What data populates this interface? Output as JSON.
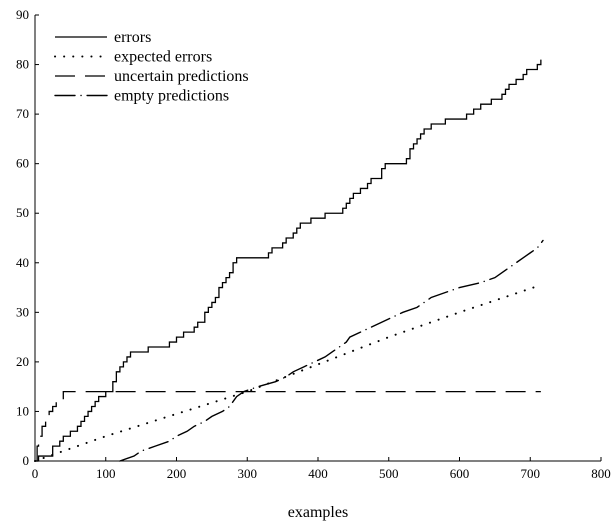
{
  "chart_data": {
    "type": "line",
    "title": "",
    "xlabel": "examples",
    "ylabel": "",
    "xlim": [
      0,
      800
    ],
    "ylim": [
      0,
      90
    ],
    "x_ticks": [
      "0",
      "100",
      "200",
      "300",
      "400",
      "500",
      "600",
      "700",
      "800"
    ],
    "y_ticks": [
      "0",
      "10",
      "20",
      "30",
      "40",
      "50",
      "60",
      "70",
      "80",
      "90"
    ],
    "grid": false,
    "legend_position": "top-left",
    "series": [
      {
        "name": "errors",
        "style": "solid",
        "points": [
          [
            0,
            0
          ],
          [
            5,
            1
          ],
          [
            10,
            1
          ],
          [
            20,
            1
          ],
          [
            25,
            3
          ],
          [
            30,
            3
          ],
          [
            35,
            4
          ],
          [
            40,
            5
          ],
          [
            45,
            5
          ],
          [
            50,
            6
          ],
          [
            60,
            7
          ],
          [
            65,
            8
          ],
          [
            70,
            9
          ],
          [
            75,
            10
          ],
          [
            80,
            11
          ],
          [
            85,
            12
          ],
          [
            90,
            13
          ],
          [
            95,
            13
          ],
          [
            100,
            14
          ],
          [
            110,
            16
          ],
          [
            115,
            18
          ],
          [
            120,
            19
          ],
          [
            125,
            20
          ],
          [
            130,
            21
          ],
          [
            135,
            22
          ],
          [
            140,
            22
          ],
          [
            150,
            22
          ],
          [
            160,
            23
          ],
          [
            170,
            23
          ],
          [
            180,
            23
          ],
          [
            190,
            24
          ],
          [
            200,
            25
          ],
          [
            210,
            26
          ],
          [
            220,
            26
          ],
          [
            225,
            27
          ],
          [
            230,
            28
          ],
          [
            240,
            30
          ],
          [
            245,
            31
          ],
          [
            250,
            32
          ],
          [
            255,
            33
          ],
          [
            260,
            35
          ],
          [
            265,
            36
          ],
          [
            270,
            37
          ],
          [
            275,
            38
          ],
          [
            280,
            40
          ],
          [
            285,
            41
          ],
          [
            300,
            41
          ],
          [
            320,
            41
          ],
          [
            330,
            42
          ],
          [
            335,
            43
          ],
          [
            340,
            43
          ],
          [
            350,
            44
          ],
          [
            355,
            45
          ],
          [
            360,
            45
          ],
          [
            365,
            46
          ],
          [
            370,
            47
          ],
          [
            375,
            48
          ],
          [
            385,
            48
          ],
          [
            390,
            49
          ],
          [
            400,
            49
          ],
          [
            410,
            50
          ],
          [
            430,
            50
          ],
          [
            435,
            51
          ],
          [
            440,
            52
          ],
          [
            445,
            53
          ],
          [
            450,
            54
          ],
          [
            460,
            55
          ],
          [
            470,
            56
          ],
          [
            475,
            57
          ],
          [
            480,
            57
          ],
          [
            490,
            59
          ],
          [
            495,
            60
          ],
          [
            520,
            60
          ],
          [
            525,
            61
          ],
          [
            530,
            63
          ],
          [
            535,
            64
          ],
          [
            540,
            65
          ],
          [
            545,
            66
          ],
          [
            550,
            67
          ],
          [
            560,
            68
          ],
          [
            570,
            68
          ],
          [
            580,
            69
          ],
          [
            600,
            69
          ],
          [
            610,
            70
          ],
          [
            620,
            71
          ],
          [
            630,
            72
          ],
          [
            640,
            72
          ],
          [
            645,
            73
          ],
          [
            655,
            73
          ],
          [
            660,
            74
          ],
          [
            665,
            75
          ],
          [
            670,
            76
          ],
          [
            680,
            77
          ],
          [
            690,
            78
          ],
          [
            695,
            79
          ],
          [
            705,
            79
          ],
          [
            710,
            80
          ],
          [
            715,
            81
          ]
        ]
      },
      {
        "name": "expected errors",
        "style": "dotted",
        "points": [
          [
            0,
            0
          ],
          [
            100,
            5
          ],
          [
            200,
            9.5
          ],
          [
            300,
            14
          ],
          [
            400,
            19.5
          ],
          [
            500,
            25
          ],
          [
            600,
            30
          ],
          [
            715,
            35.5
          ]
        ]
      },
      {
        "name": "uncertain predictions",
        "style": "dashed",
        "points": [
          [
            0,
            0
          ],
          [
            3,
            3
          ],
          [
            5,
            5
          ],
          [
            10,
            7
          ],
          [
            15,
            9
          ],
          [
            20,
            10
          ],
          [
            25,
            11
          ],
          [
            30,
            12
          ],
          [
            40,
            14
          ],
          [
            60,
            14
          ],
          [
            100,
            14
          ],
          [
            200,
            14
          ],
          [
            300,
            14
          ],
          [
            400,
            14
          ],
          [
            500,
            14
          ],
          [
            600,
            14
          ],
          [
            700,
            14
          ],
          [
            715,
            14
          ]
        ]
      },
      {
        "name": "empty predictions",
        "style": "dashdot",
        "points": [
          [
            120,
            0
          ],
          [
            140,
            1
          ],
          [
            150,
            2
          ],
          [
            170,
            3
          ],
          [
            190,
            4
          ],
          [
            200,
            5
          ],
          [
            215,
            6
          ],
          [
            225,
            7
          ],
          [
            240,
            8
          ],
          [
            250,
            9
          ],
          [
            265,
            10
          ],
          [
            275,
            11
          ],
          [
            285,
            13
          ],
          [
            295,
            14
          ],
          [
            315,
            15
          ],
          [
            340,
            16
          ],
          [
            355,
            17
          ],
          [
            365,
            18
          ],
          [
            380,
            19
          ],
          [
            395,
            20
          ],
          [
            410,
            21
          ],
          [
            420,
            22
          ],
          [
            430,
            23
          ],
          [
            440,
            24
          ],
          [
            445,
            25
          ],
          [
            460,
            26
          ],
          [
            475,
            27
          ],
          [
            490,
            28
          ],
          [
            505,
            29
          ],
          [
            520,
            30
          ],
          [
            540,
            31
          ],
          [
            550,
            32
          ],
          [
            560,
            33
          ],
          [
            580,
            34
          ],
          [
            600,
            35
          ],
          [
            630,
            36
          ],
          [
            650,
            37
          ],
          [
            660,
            38
          ],
          [
            670,
            39
          ],
          [
            680,
            40
          ],
          [
            690,
            41
          ],
          [
            700,
            42
          ],
          [
            710,
            43
          ],
          [
            718,
            44.5
          ]
        ]
      }
    ]
  }
}
